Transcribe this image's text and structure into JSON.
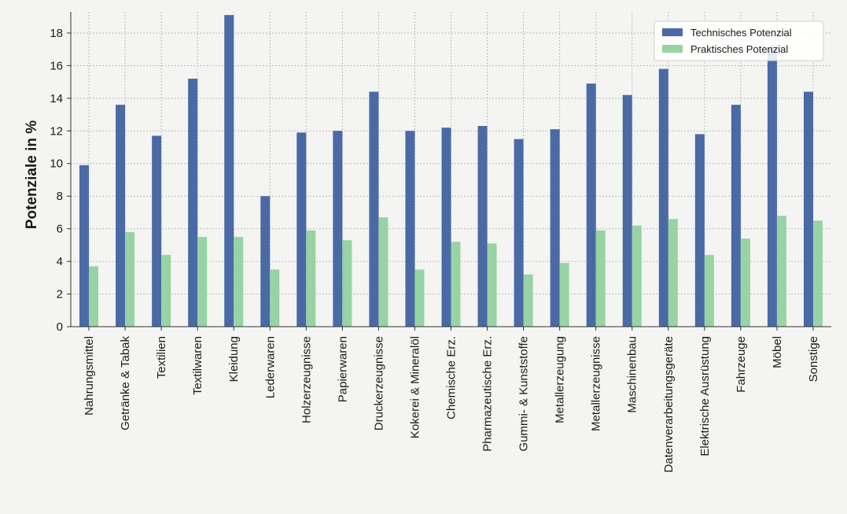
{
  "chart_data": {
    "type": "bar",
    "ylabel": "Potenziale in %",
    "xlabel": "",
    "ylim": [
      0,
      19.3
    ],
    "yticks": [
      0,
      2,
      4,
      6,
      8,
      10,
      12,
      14,
      16,
      18
    ],
    "grid": true,
    "legend_position": "top-right",
    "categories": [
      "Nahrungsmittel",
      "Getränke & Tabak",
      "Textilien",
      "Textilwaren",
      "Kleidung",
      "Lederwaren",
      "Holzerzeugnisse",
      "Papierwaren",
      "Druckerzeugnisse",
      "Kokerei & Mineralöl",
      "Chemische Erz.",
      "Pharmazeutische Erz.",
      "Gummi- & Kunststoffe",
      "Metallerzeugung",
      "Metallerzeugnisse",
      "Maschinenbau",
      "Datenverarbeitungsgeräte",
      "Elektrische Ausrüstung",
      "Fahrzeuge",
      "Möbel",
      "Sonstige"
    ],
    "series": [
      {
        "name": "Technisches Potenzial",
        "color": "#4a6aa5",
        "values": [
          9.9,
          13.6,
          11.7,
          15.2,
          19.1,
          8.0,
          11.9,
          12.0,
          14.4,
          12.0,
          12.2,
          12.3,
          11.5,
          12.1,
          14.9,
          14.2,
          15.8,
          11.8,
          13.6,
          17.1,
          14.4
        ]
      },
      {
        "name": "Praktisches Potenzial",
        "color": "#98d3a3",
        "values": [
          3.7,
          5.8,
          4.4,
          5.5,
          5.5,
          3.5,
          5.9,
          5.3,
          6.7,
          3.5,
          5.2,
          5.1,
          3.2,
          3.9,
          5.9,
          6.2,
          6.6,
          4.4,
          5.4,
          6.8,
          6.5
        ]
      }
    ]
  }
}
